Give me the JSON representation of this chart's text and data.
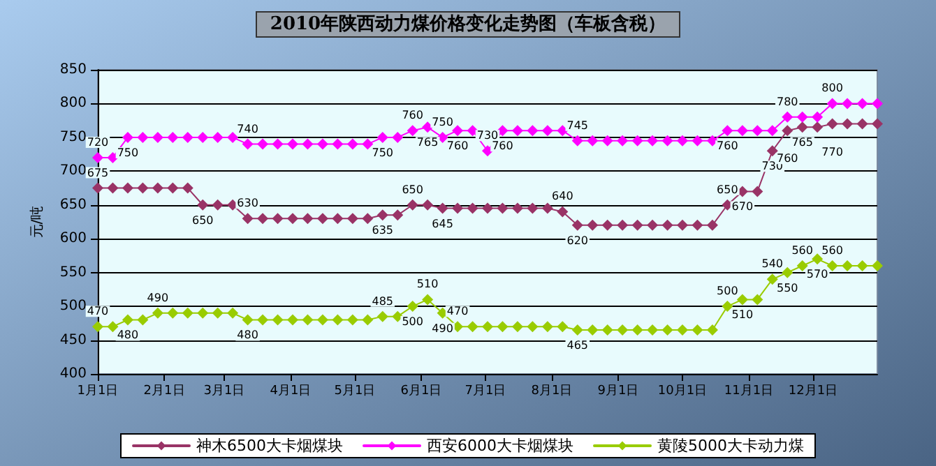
{
  "chart_data": {
    "type": "line",
    "title": "2010年陕西动力煤价格变化走势图（车板含税）",
    "ylabel": "元/吨",
    "x": [
      "2010-01-01",
      "2010-01-08",
      "2010-01-15",
      "2010-01-22",
      "2010-01-29",
      "2010-02-05",
      "2010-02-12",
      "2010-02-19",
      "2010-02-26",
      "2010-03-05",
      "2010-03-12",
      "2010-03-19",
      "2010-03-26",
      "2010-04-02",
      "2010-04-09",
      "2010-04-16",
      "2010-04-23",
      "2010-04-30",
      "2010-05-07",
      "2010-05-14",
      "2010-05-21",
      "2010-05-28",
      "2010-06-04",
      "2010-06-11",
      "2010-06-18",
      "2010-06-25",
      "2010-07-02",
      "2010-07-09",
      "2010-07-16",
      "2010-07-23",
      "2010-07-30",
      "2010-08-06",
      "2010-08-13",
      "2010-08-20",
      "2010-08-27",
      "2010-09-03",
      "2010-09-10",
      "2010-09-17",
      "2010-09-24",
      "2010-10-01",
      "2010-10-08",
      "2010-10-15",
      "2010-10-22",
      "2010-10-29",
      "2010-11-05",
      "2010-11-12",
      "2010-11-19",
      "2010-11-26",
      "2010-12-03",
      "2010-12-10",
      "2010-12-17",
      "2010-12-24",
      "2010-12-31"
    ],
    "series": [
      {
        "name": "神木6500大卡烟煤块",
        "color": "#993366",
        "values": [
          675,
          675,
          675,
          675,
          675,
          675,
          675,
          650,
          650,
          650,
          630,
          630,
          630,
          630,
          630,
          630,
          630,
          630,
          630,
          635,
          635,
          650,
          650,
          645,
          645,
          645,
          645,
          645,
          645,
          645,
          645,
          640,
          620,
          620,
          620,
          620,
          620,
          620,
          620,
          620,
          620,
          620,
          650,
          670,
          670,
          730,
          760,
          765,
          765,
          770,
          770,
          770,
          770
        ],
        "value_labels": [
          "675",
          null,
          null,
          null,
          null,
          null,
          null,
          "650",
          null,
          null,
          "630",
          null,
          null,
          null,
          null,
          null,
          null,
          null,
          null,
          "635",
          null,
          "650",
          null,
          "645",
          null,
          null,
          null,
          null,
          null,
          null,
          null,
          "640",
          "620",
          null,
          null,
          null,
          null,
          null,
          null,
          null,
          null,
          null,
          "650",
          "670",
          null,
          "730",
          "760",
          "765",
          null,
          "770",
          null,
          null,
          null
        ]
      },
      {
        "name": "西安6000大卡烟煤块",
        "color": "#ff00ff",
        "values": [
          720,
          720,
          750,
          750,
          750,
          750,
          750,
          750,
          750,
          750,
          740,
          740,
          740,
          740,
          740,
          740,
          740,
          740,
          740,
          750,
          750,
          760,
          765,
          750,
          760,
          760,
          730,
          760,
          760,
          760,
          760,
          760,
          745,
          745,
          745,
          745,
          745,
          745,
          745,
          745,
          745,
          745,
          760,
          760,
          760,
          760,
          780,
          780,
          780,
          800,
          800,
          800,
          800
        ],
        "value_labels": [
          "720",
          null,
          "750",
          null,
          null,
          null,
          null,
          null,
          null,
          null,
          "740",
          null,
          null,
          null,
          null,
          null,
          null,
          null,
          null,
          "750",
          null,
          "760",
          "765",
          "750",
          "760",
          null,
          "730",
          "760",
          null,
          null,
          null,
          null,
          "745",
          null,
          null,
          null,
          null,
          null,
          null,
          null,
          null,
          null,
          "760",
          null,
          null,
          null,
          "780",
          null,
          null,
          "800",
          null,
          null,
          null
        ]
      },
      {
        "name": "黄陵5000大卡动力煤",
        "color": "#99cc00",
        "values": [
          470,
          470,
          480,
          480,
          490,
          490,
          490,
          490,
          490,
          490,
          480,
          480,
          480,
          480,
          480,
          480,
          480,
          480,
          480,
          485,
          485,
          500,
          510,
          490,
          470,
          470,
          470,
          470,
          470,
          470,
          470,
          470,
          465,
          465,
          465,
          465,
          465,
          465,
          465,
          465,
          465,
          465,
          500,
          510,
          510,
          540,
          550,
          560,
          570,
          560,
          560,
          560,
          560
        ],
        "value_labels": [
          "470",
          null,
          "480",
          null,
          "490",
          null,
          null,
          null,
          null,
          null,
          "480",
          null,
          null,
          null,
          null,
          null,
          null,
          null,
          null,
          "485",
          null,
          "500",
          "510",
          "490",
          "470",
          null,
          null,
          null,
          null,
          null,
          null,
          null,
          "465",
          null,
          null,
          null,
          null,
          null,
          null,
          null,
          null,
          null,
          "500",
          "510",
          null,
          "540",
          "550",
          "560",
          "570",
          "560",
          null,
          null,
          null
        ]
      }
    ],
    "xlim": [
      "2010-01-01",
      "2010-12-31"
    ],
    "xticks": [
      {
        "value": "2010-01-01",
        "label": "1月1日"
      },
      {
        "value": "2010-02-01",
        "label": "2月1日"
      },
      {
        "value": "2010-03-01",
        "label": "3月1日"
      },
      {
        "value": "2010-04-01",
        "label": "4月1日"
      },
      {
        "value": "2010-05-01",
        "label": "5月1日"
      },
      {
        "value": "2010-06-01",
        "label": "6月1日"
      },
      {
        "value": "2010-07-01",
        "label": "7月1日"
      },
      {
        "value": "2010-08-01",
        "label": "8月1日"
      },
      {
        "value": "2010-09-01",
        "label": "9月1日"
      },
      {
        "value": "2010-10-01",
        "label": "10月1日"
      },
      {
        "value": "2010-11-01",
        "label": "11月1日"
      },
      {
        "value": "2010-12-01",
        "label": "12月1日"
      }
    ],
    "ylim": [
      400,
      850
    ],
    "yticks": [
      400,
      450,
      500,
      550,
      600,
      650,
      700,
      750,
      800,
      850
    ],
    "grid": "y",
    "legend": "bottom",
    "marker": "diamond",
    "line_style": "solid"
  }
}
